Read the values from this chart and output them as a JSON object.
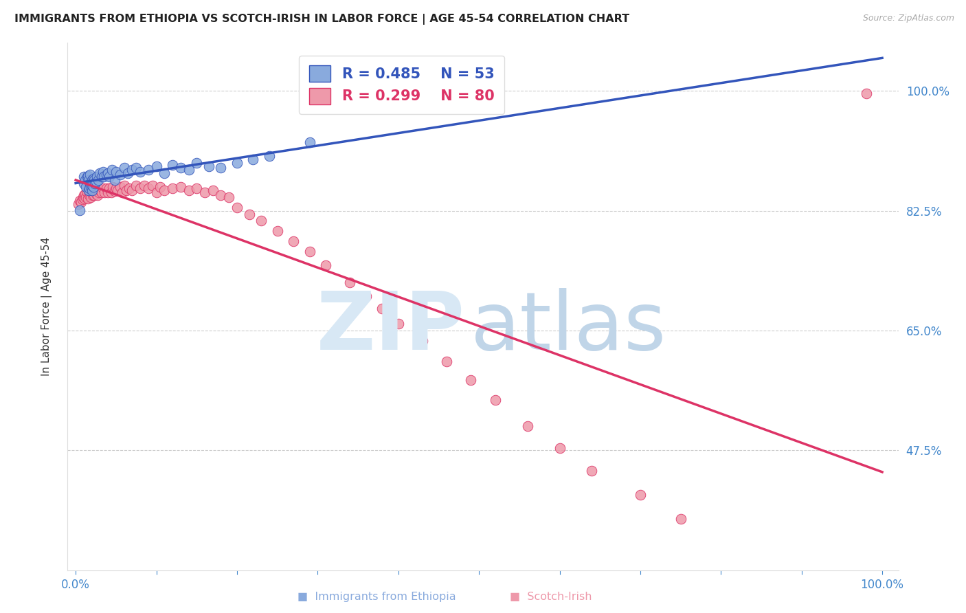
{
  "title": "IMMIGRANTS FROM ETHIOPIA VS SCOTCH-IRISH IN LABOR FORCE | AGE 45-54 CORRELATION CHART",
  "source": "Source: ZipAtlas.com",
  "ylabel": "In Labor Force | Age 45-54",
  "xlim": [
    -0.01,
    1.02
  ],
  "ylim": [
    0.3,
    1.07
  ],
  "ytick_positions": [
    0.475,
    0.65,
    0.825,
    1.0
  ],
  "ytick_labels": [
    "47.5%",
    "65.0%",
    "82.5%",
    "100.0%"
  ],
  "xtick_positions": [
    0.0,
    0.1,
    0.2,
    0.3,
    0.4,
    0.5,
    0.6,
    0.7,
    0.8,
    0.9,
    1.0
  ],
  "xtick_labels": [
    "0.0%",
    "",
    "",
    "",
    "",
    "",
    "",
    "",
    "",
    "",
    "100.0%"
  ],
  "legend_blue_R": "R = 0.485",
  "legend_blue_N": "N = 53",
  "legend_pink_R": "R = 0.299",
  "legend_pink_N": "N = 80",
  "blue_color": "#89AADD",
  "pink_color": "#EE99AA",
  "blue_line_color": "#3355BB",
  "pink_line_color": "#DD3366",
  "blue_x": [
    0.005,
    0.01,
    0.01,
    0.012,
    0.013,
    0.014,
    0.015,
    0.016,
    0.016,
    0.017,
    0.018,
    0.018,
    0.019,
    0.02,
    0.02,
    0.02,
    0.021,
    0.022,
    0.022,
    0.023,
    0.024,
    0.025,
    0.026,
    0.028,
    0.03,
    0.032,
    0.034,
    0.035,
    0.038,
    0.04,
    0.042,
    0.045,
    0.048,
    0.05,
    0.055,
    0.06,
    0.065,
    0.07,
    0.075,
    0.08,
    0.09,
    0.1,
    0.11,
    0.12,
    0.13,
    0.14,
    0.15,
    0.165,
    0.18,
    0.2,
    0.22,
    0.24,
    0.29
  ],
  "blue_y": [
    0.826,
    0.865,
    0.875,
    0.87,
    0.86,
    0.875,
    0.876,
    0.855,
    0.87,
    0.858,
    0.865,
    0.878,
    0.86,
    0.855,
    0.862,
    0.87,
    0.865,
    0.86,
    0.872,
    0.87,
    0.865,
    0.868,
    0.875,
    0.87,
    0.88,
    0.875,
    0.882,
    0.875,
    0.878,
    0.88,
    0.875,
    0.885,
    0.87,
    0.882,
    0.878,
    0.888,
    0.88,
    0.885,
    0.888,
    0.882,
    0.885,
    0.89,
    0.88,
    0.892,
    0.888,
    0.885,
    0.895,
    0.89,
    0.888,
    0.895,
    0.9,
    0.905,
    0.925
  ],
  "pink_x": [
    0.003,
    0.005,
    0.007,
    0.008,
    0.009,
    0.01,
    0.011,
    0.012,
    0.013,
    0.014,
    0.015,
    0.016,
    0.017,
    0.018,
    0.019,
    0.02,
    0.021,
    0.022,
    0.023,
    0.024,
    0.025,
    0.026,
    0.027,
    0.028,
    0.029,
    0.03,
    0.032,
    0.034,
    0.036,
    0.038,
    0.04,
    0.042,
    0.044,
    0.046,
    0.048,
    0.05,
    0.052,
    0.055,
    0.058,
    0.06,
    0.063,
    0.066,
    0.07,
    0.075,
    0.08,
    0.085,
    0.09,
    0.095,
    0.1,
    0.105,
    0.11,
    0.12,
    0.13,
    0.14,
    0.15,
    0.16,
    0.17,
    0.18,
    0.19,
    0.2,
    0.215,
    0.23,
    0.25,
    0.27,
    0.29,
    0.31,
    0.34,
    0.36,
    0.38,
    0.4,
    0.43,
    0.46,
    0.49,
    0.52,
    0.56,
    0.6,
    0.64,
    0.7,
    0.75,
    0.98
  ],
  "pink_y": [
    0.835,
    0.84,
    0.838,
    0.842,
    0.845,
    0.848,
    0.843,
    0.85,
    0.845,
    0.852,
    0.843,
    0.855,
    0.848,
    0.85,
    0.845,
    0.852,
    0.848,
    0.854,
    0.848,
    0.854,
    0.85,
    0.855,
    0.848,
    0.858,
    0.852,
    0.855,
    0.852,
    0.858,
    0.852,
    0.858,
    0.852,
    0.858,
    0.852,
    0.86,
    0.854,
    0.858,
    0.855,
    0.86,
    0.852,
    0.862,
    0.855,
    0.858,
    0.855,
    0.862,
    0.858,
    0.862,
    0.858,
    0.862,
    0.852,
    0.86,
    0.855,
    0.858,
    0.86,
    0.855,
    0.858,
    0.852,
    0.855,
    0.848,
    0.845,
    0.83,
    0.82,
    0.81,
    0.795,
    0.78,
    0.765,
    0.745,
    0.72,
    0.7,
    0.682,
    0.66,
    0.635,
    0.605,
    0.578,
    0.548,
    0.51,
    0.478,
    0.445,
    0.41,
    0.375,
    0.996
  ]
}
